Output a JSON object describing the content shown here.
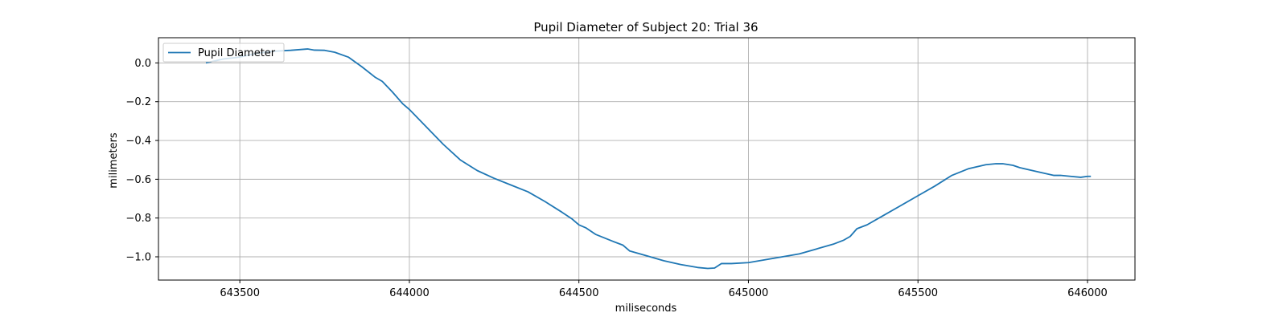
{
  "chart_data": {
    "type": "line",
    "title": "Pupil Diameter of Subject 20: Trial 36",
    "xlabel": "miliseconds",
    "ylabel": "milimeters",
    "xlim": [
      643260,
      646140
    ],
    "ylim": [
      -1.12,
      0.13
    ],
    "xticks": [
      643500,
      644000,
      644500,
      645000,
      645500,
      646000
    ],
    "xtick_labels": [
      "643500",
      "644000",
      "644500",
      "645000",
      "645500",
      "646000"
    ],
    "yticks": [
      0.0,
      -0.2,
      -0.4,
      -0.6,
      -0.8,
      -1.0
    ],
    "ytick_labels": [
      "0.0",
      "−0.2",
      "−0.4",
      "−0.6",
      "−0.8",
      "−1.0"
    ],
    "grid": true,
    "legend": {
      "position": "top-left",
      "entries": [
        "Pupil Diameter"
      ]
    },
    "series": [
      {
        "name": "Pupil Diameter",
        "color": "#1f77b4",
        "x": [
          643400,
          643450,
          643500,
          643550,
          643600,
          643650,
          643700,
          643720,
          643750,
          643780,
          643820,
          643860,
          643900,
          643920,
          643950,
          643980,
          644000,
          644050,
          644100,
          644150,
          644200,
          644250,
          644300,
          644350,
          644400,
          644450,
          644480,
          644500,
          644520,
          644550,
          644600,
          644630,
          644650,
          644700,
          644750,
          644800,
          644850,
          644880,
          644900,
          644920,
          644950,
          645000,
          645050,
          645100,
          645150,
          645200,
          645250,
          645280,
          645300,
          645320,
          645350,
          645400,
          645450,
          645500,
          645550,
          645600,
          645650,
          645700,
          645730,
          645750,
          645780,
          645800,
          645850,
          645900,
          645920,
          645950,
          645980,
          646000,
          646010
        ],
        "y": [
          0.0,
          0.02,
          0.03,
          0.05,
          0.06,
          0.065,
          0.072,
          0.066,
          0.065,
          0.055,
          0.03,
          -0.02,
          -0.075,
          -0.095,
          -0.15,
          -0.21,
          -0.24,
          -0.33,
          -0.42,
          -0.5,
          -0.555,
          -0.595,
          -0.63,
          -0.665,
          -0.715,
          -0.77,
          -0.805,
          -0.835,
          -0.85,
          -0.885,
          -0.92,
          -0.94,
          -0.97,
          -0.995,
          -1.02,
          -1.04,
          -1.055,
          -1.06,
          -1.058,
          -1.035,
          -1.035,
          -1.03,
          -1.015,
          -1.0,
          -0.985,
          -0.96,
          -0.935,
          -0.915,
          -0.895,
          -0.855,
          -0.835,
          -0.785,
          -0.735,
          -0.685,
          -0.635,
          -0.58,
          -0.545,
          -0.525,
          -0.52,
          -0.52,
          -0.528,
          -0.54,
          -0.56,
          -0.58,
          -0.58,
          -0.585,
          -0.59,
          -0.585,
          -0.585
        ]
      }
    ]
  }
}
